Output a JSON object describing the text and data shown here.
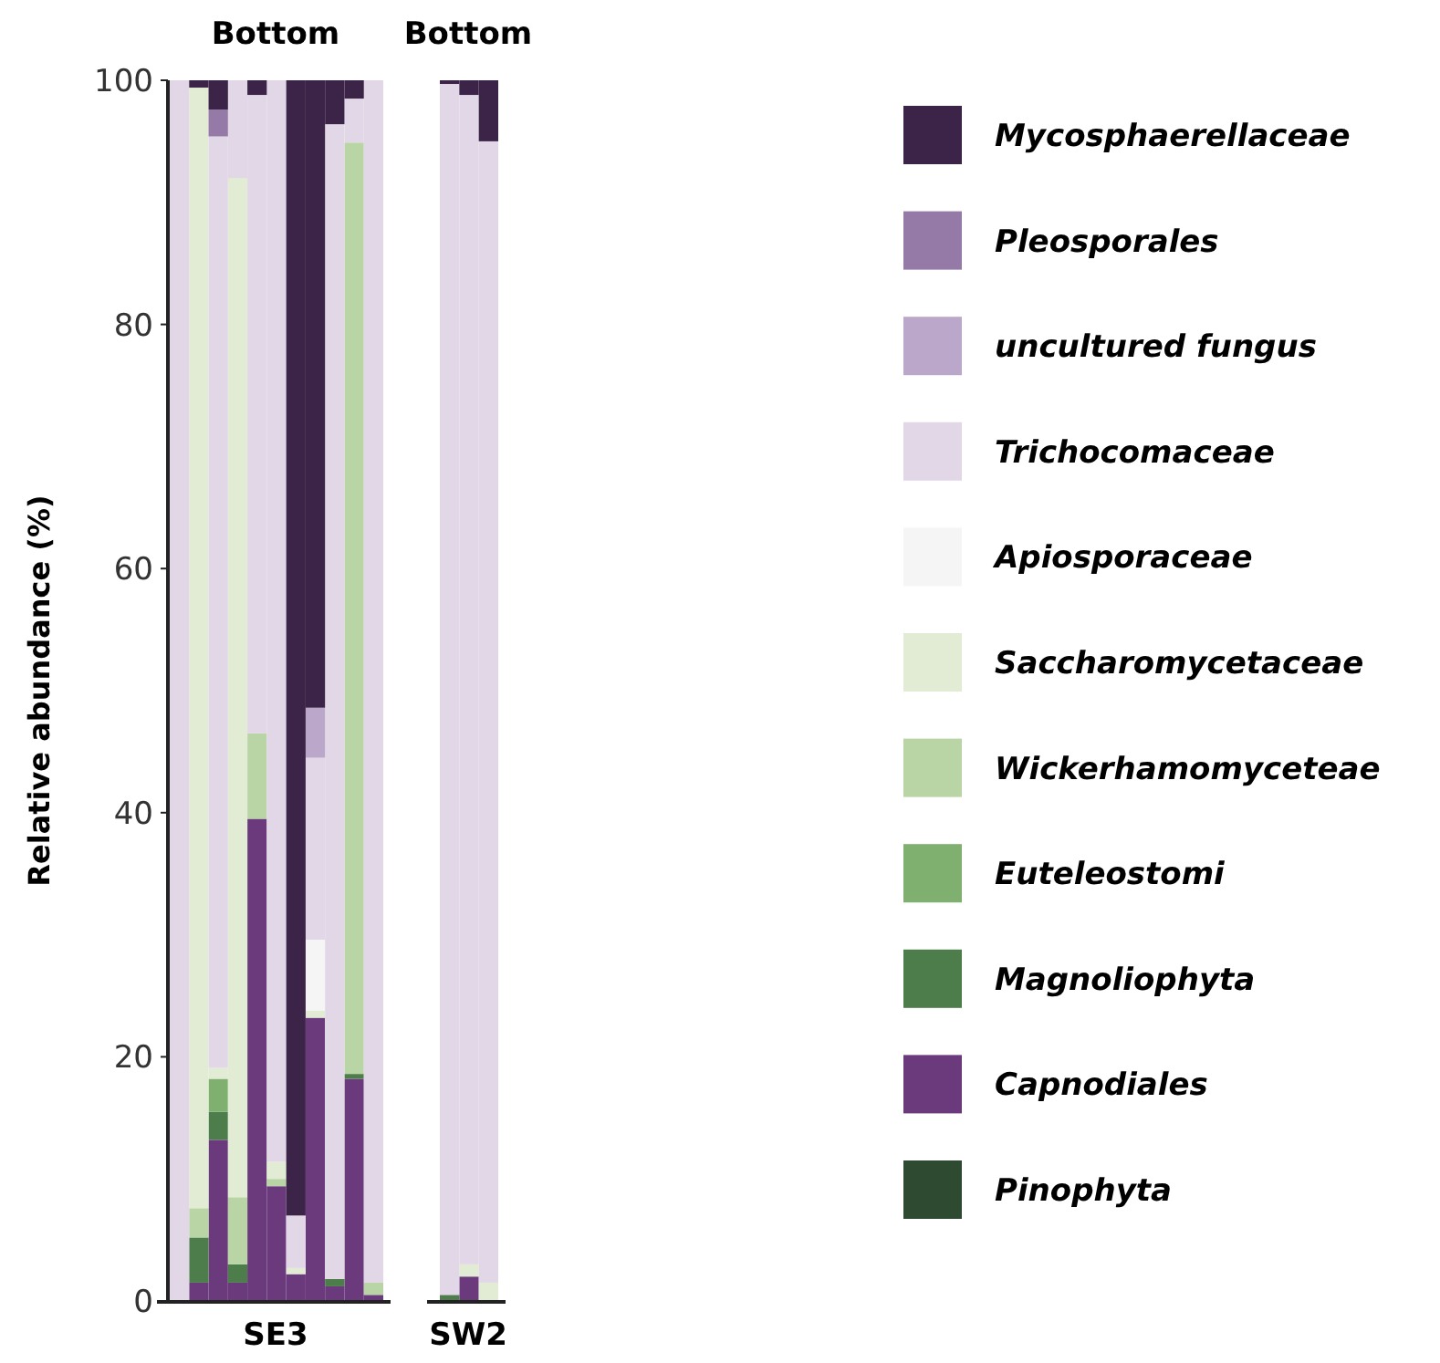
{
  "chart_data": [
    {
      "type": "bar",
      "stacked": true,
      "title": "Bottom",
      "xlabel": "SE3",
      "ylabel": "Relative abundance (%)",
      "categories": [
        null,
        null,
        null,
        null,
        null,
        null,
        null,
        null,
        null,
        null,
        null
      ],
      "ylim": [
        0,
        100
      ],
      "yticks": [
        0,
        20,
        40,
        60,
        80,
        100
      ],
      "tick_labels": "y",
      "legend": "right",
      "series": [
        {
          "name": "Pinophyta",
          "color": "#2e4a31",
          "values": [
            0,
            0,
            0,
            0,
            0,
            0,
            0,
            0,
            0,
            0,
            0
          ]
        },
        {
          "name": "Capnodiales",
          "color": "#6b3a7d",
          "values": [
            0,
            1.5,
            13.2,
            1.5,
            39.5,
            9.4,
            2.2,
            23.2,
            1.2,
            18.2,
            0.5
          ]
        },
        {
          "name": "Magnoliophyta",
          "color": "#4d7d4a",
          "values": [
            0,
            3.7,
            2.3,
            1.5,
            0,
            0,
            0,
            0,
            0.6,
            0.4,
            0
          ]
        },
        {
          "name": "Euteleostomi",
          "color": "#7fb06f",
          "values": [
            0,
            0,
            2.7,
            0,
            0,
            0,
            0,
            0,
            0,
            0,
            0
          ]
        },
        {
          "name": "Wickerhamomyceteae",
          "color": "#b9d5a6",
          "values": [
            0,
            2.4,
            0,
            5.5,
            7,
            0.6,
            0,
            0,
            0,
            76.3,
            1
          ]
        },
        {
          "name": "Saccharomycetaceae",
          "color": "#e2ebd3",
          "values": [
            0,
            91.8,
            0.9,
            83.5,
            0,
            1.4,
            0.5,
            0.6,
            0,
            0,
            0
          ]
        },
        {
          "name": "Apiosporaceae",
          "color": "#f5f5f5",
          "values": [
            0,
            0,
            0,
            0,
            0,
            0,
            0,
            5.8,
            0,
            0,
            0
          ]
        },
        {
          "name": "Trichocomaceae",
          "color": "#e2d7e6",
          "values": [
            100,
            0,
            76.3,
            8,
            52.3,
            88.6,
            4.3,
            14.9,
            94.6,
            3.6,
            98.5
          ]
        },
        {
          "name": "uncultured fungus",
          "color": "#bba7c9",
          "values": [
            0,
            0,
            0,
            0,
            0,
            0,
            0,
            4.1,
            0,
            0,
            0
          ]
        },
        {
          "name": "Pleosporales",
          "color": "#957aa8",
          "values": [
            0,
            0,
            2.2,
            0,
            0,
            0,
            0,
            0,
            0,
            0,
            0
          ]
        },
        {
          "name": "Mycosphaerellaceae",
          "color": "#3b2447",
          "values": [
            0,
            0.6,
            2.4,
            0,
            1.2,
            0,
            93,
            51.4,
            3.6,
            1.5,
            0
          ]
        }
      ]
    },
    {
      "type": "bar",
      "stacked": true,
      "title": "Bottom",
      "xlabel": "SW2",
      "categories": [
        null,
        null,
        null
      ],
      "ylim": [
        0,
        100
      ],
      "tick_labels": false,
      "series": [
        {
          "color": "#6b3a7d",
          "values": [
            0,
            2,
            0
          ]
        },
        {
          "color": "#4d7d4a",
          "values": [
            0.5,
            0,
            0
          ]
        },
        {
          "color": "#e2ebd3",
          "values": [
            0,
            1,
            1.5
          ]
        },
        {
          "color": "#e2d7e6",
          "values": [
            99.2,
            95.8,
            93.5
          ]
        },
        {
          "color": "#3b2447",
          "values": [
            0.3,
            1.2,
            5
          ]
        }
      ]
    }
  ]
}
